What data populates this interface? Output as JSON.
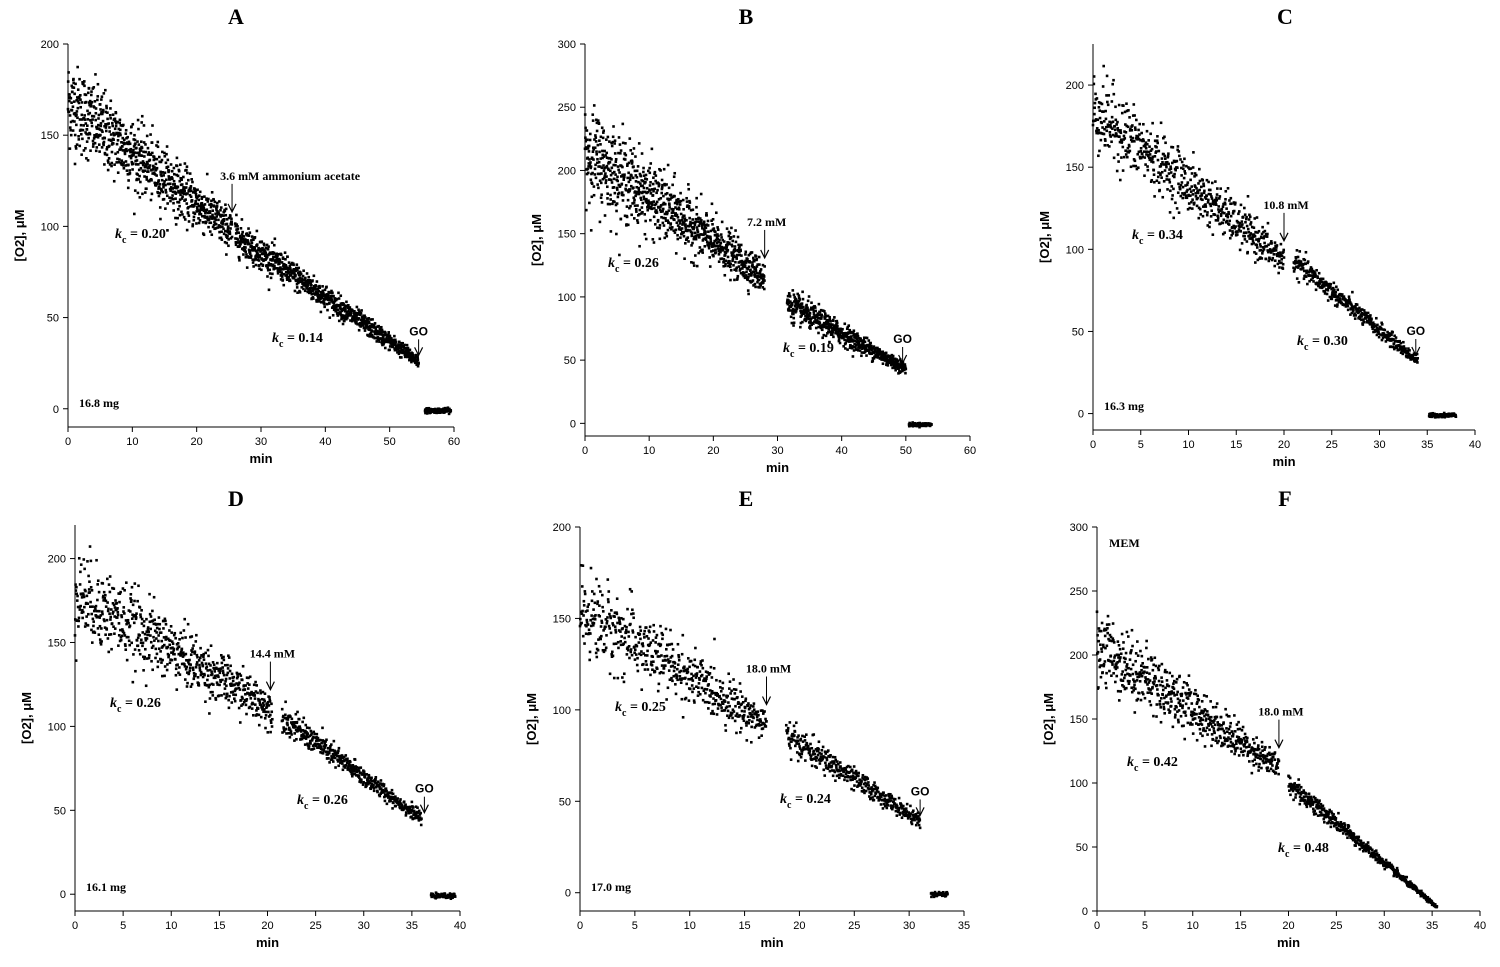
{
  "figure": {
    "colors": {
      "points": "#000000",
      "axes": "#000000",
      "background": "#ffffff"
    }
  },
  "chart_data": [
    {
      "id": "A",
      "type": "scatter",
      "title": "A",
      "xlabel": "min",
      "ylabel": "[O2], μM",
      "xlim": [
        0,
        60
      ],
      "ylim": [
        -10,
        200
      ],
      "xticks": [
        0,
        10,
        20,
        30,
        40,
        50,
        60
      ],
      "yticks": [
        0,
        50,
        100,
        150,
        200
      ],
      "segments": [
        {
          "x0": 0,
          "x1": 25.5,
          "y0": 168,
          "y1": 97,
          "noise_start": 20,
          "noise_end": 9
        },
        {
          "x0": 26,
          "x1": 54.5,
          "y0": 95,
          "y1": 26,
          "noise_start": 8,
          "noise_end": 3
        },
        {
          "x0": 55.5,
          "x1": 59.5,
          "y0": -1,
          "y1": -1,
          "noise_start": 1,
          "noise_end": 1
        }
      ],
      "addition_label": "3.6 mM ammonium acetate",
      "addition_x": 25.5,
      "kc_before": "0.20",
      "kc_after": "0.14",
      "mass": "16.8 mg",
      "go_label": "GO",
      "go_x": 54.5
    },
    {
      "id": "B",
      "type": "scatter",
      "title": "B",
      "xlabel": "min",
      "ylabel": "[O2], μM",
      "xlim": [
        0,
        60
      ],
      "ylim": [
        -10,
        300
      ],
      "xticks": [
        0,
        10,
        20,
        30,
        40,
        50,
        60
      ],
      "yticks": [
        0,
        50,
        100,
        150,
        200,
        250,
        300
      ],
      "segments": [
        {
          "x0": 0,
          "x1": 28,
          "y0": 215,
          "y1": 115,
          "noise_start": 32,
          "noise_end": 10
        },
        {
          "x0": 31.5,
          "x1": 50,
          "y0": 95,
          "y1": 43,
          "noise_start": 10,
          "noise_end": 4
        },
        {
          "x0": 50.5,
          "x1": 54,
          "y0": -1,
          "y1": -1,
          "noise_start": 1,
          "noise_end": 1
        }
      ],
      "addition_label": "7.2 mM",
      "addition_x": 28,
      "kc_before": "0.26",
      "kc_after": "0.19",
      "mass": "",
      "go_label": "GO",
      "go_x": 49.5
    },
    {
      "id": "C",
      "type": "scatter",
      "title": "C",
      "xlabel": "min",
      "ylabel": "[O2], μM",
      "xlim": [
        0,
        40
      ],
      "ylim": [
        -10,
        225
      ],
      "xticks": [
        0,
        5,
        10,
        15,
        20,
        25,
        30,
        35,
        40
      ],
      "yticks": [
        0,
        50,
        100,
        150,
        200
      ],
      "segments": [
        {
          "x0": 0,
          "x1": 20,
          "y0": 185,
          "y1": 93,
          "noise_start": 20,
          "noise_end": 8
        },
        {
          "x0": 21,
          "x1": 34,
          "y0": 93,
          "y1": 32,
          "noise_start": 6,
          "noise_end": 3
        },
        {
          "x0": 35.2,
          "x1": 38,
          "y0": -1,
          "y1": -1,
          "noise_start": 1,
          "noise_end": 1
        }
      ],
      "addition_label": "10.8 mM",
      "addition_x": 20,
      "kc_before": "0.34",
      "kc_after": "0.30",
      "mass": "16.3 mg",
      "go_label": "GO",
      "go_x": 33.8
    },
    {
      "id": "D",
      "type": "scatter",
      "title": "D",
      "xlabel": "min",
      "ylabel": "[O2], μM",
      "xlim": [
        0,
        40
      ],
      "ylim": [
        -10,
        220
      ],
      "xticks": [
        0,
        5,
        10,
        15,
        20,
        25,
        30,
        35,
        40
      ],
      "yticks": [
        0,
        50,
        100,
        150,
        200
      ],
      "segments": [
        {
          "x0": 0,
          "x1": 20.5,
          "y0": 180,
          "y1": 110,
          "noise_start": 22,
          "noise_end": 9
        },
        {
          "x0": 21.5,
          "x1": 36,
          "y0": 105,
          "y1": 45,
          "noise_start": 7,
          "noise_end": 3
        },
        {
          "x0": 37,
          "x1": 39.5,
          "y0": -1,
          "y1": -1,
          "noise_start": 1,
          "noise_end": 1
        }
      ],
      "addition_label": "14.4 mM",
      "addition_x": 20.3,
      "kc_before": "0.26",
      "kc_after": "0.26",
      "mass": "16.1 mg",
      "go_label": "GO",
      "go_x": 36.3
    },
    {
      "id": "E",
      "type": "scatter",
      "title": "E",
      "xlabel": "min",
      "ylabel": "[O2], μM",
      "xlim": [
        0,
        35
      ],
      "ylim": [
        -10,
        200
      ],
      "xticks": [
        0,
        5,
        10,
        15,
        20,
        25,
        30,
        35
      ],
      "yticks": [
        0,
        50,
        100,
        150,
        200
      ],
      "segments": [
        {
          "x0": 0,
          "x1": 17,
          "y0": 155,
          "y1": 92,
          "noise_start": 20,
          "noise_end": 8
        },
        {
          "x0": 18.8,
          "x1": 31,
          "y0": 86,
          "y1": 39,
          "noise_start": 7,
          "noise_end": 3
        },
        {
          "x0": 32,
          "x1": 33.5,
          "y0": -1,
          "y1": -1,
          "noise_start": 1,
          "noise_end": 1
        }
      ],
      "addition_label": "18.0 mM",
      "addition_x": 17,
      "kc_before": "0.25",
      "kc_after": "0.24",
      "mass": "17.0 mg",
      "go_label": "GO",
      "go_x": 31
    },
    {
      "id": "F",
      "type": "scatter",
      "title": "F",
      "xlabel": "min",
      "ylabel": "[O2], μM",
      "xlim": [
        0,
        40
      ],
      "ylim": [
        0,
        300
      ],
      "xticks": [
        0,
        5,
        10,
        15,
        20,
        25,
        30,
        35,
        40
      ],
      "yticks": [
        0,
        50,
        100,
        150,
        200,
        250,
        300
      ],
      "segments": [
        {
          "x0": 0,
          "x1": 19,
          "y0": 208,
          "y1": 112,
          "noise_start": 25,
          "noise_end": 8
        },
        {
          "x0": 20,
          "x1": 35.5,
          "y0": 100,
          "y1": 3,
          "noise_start": 7,
          "noise_end": 1
        }
      ],
      "addition_label": "18.0 mM",
      "addition_x": 19,
      "kc_before": "0.42",
      "kc_after": "0.48",
      "mass": "",
      "go_label": "",
      "go_x": null,
      "medium_label": "MEM"
    }
  ]
}
